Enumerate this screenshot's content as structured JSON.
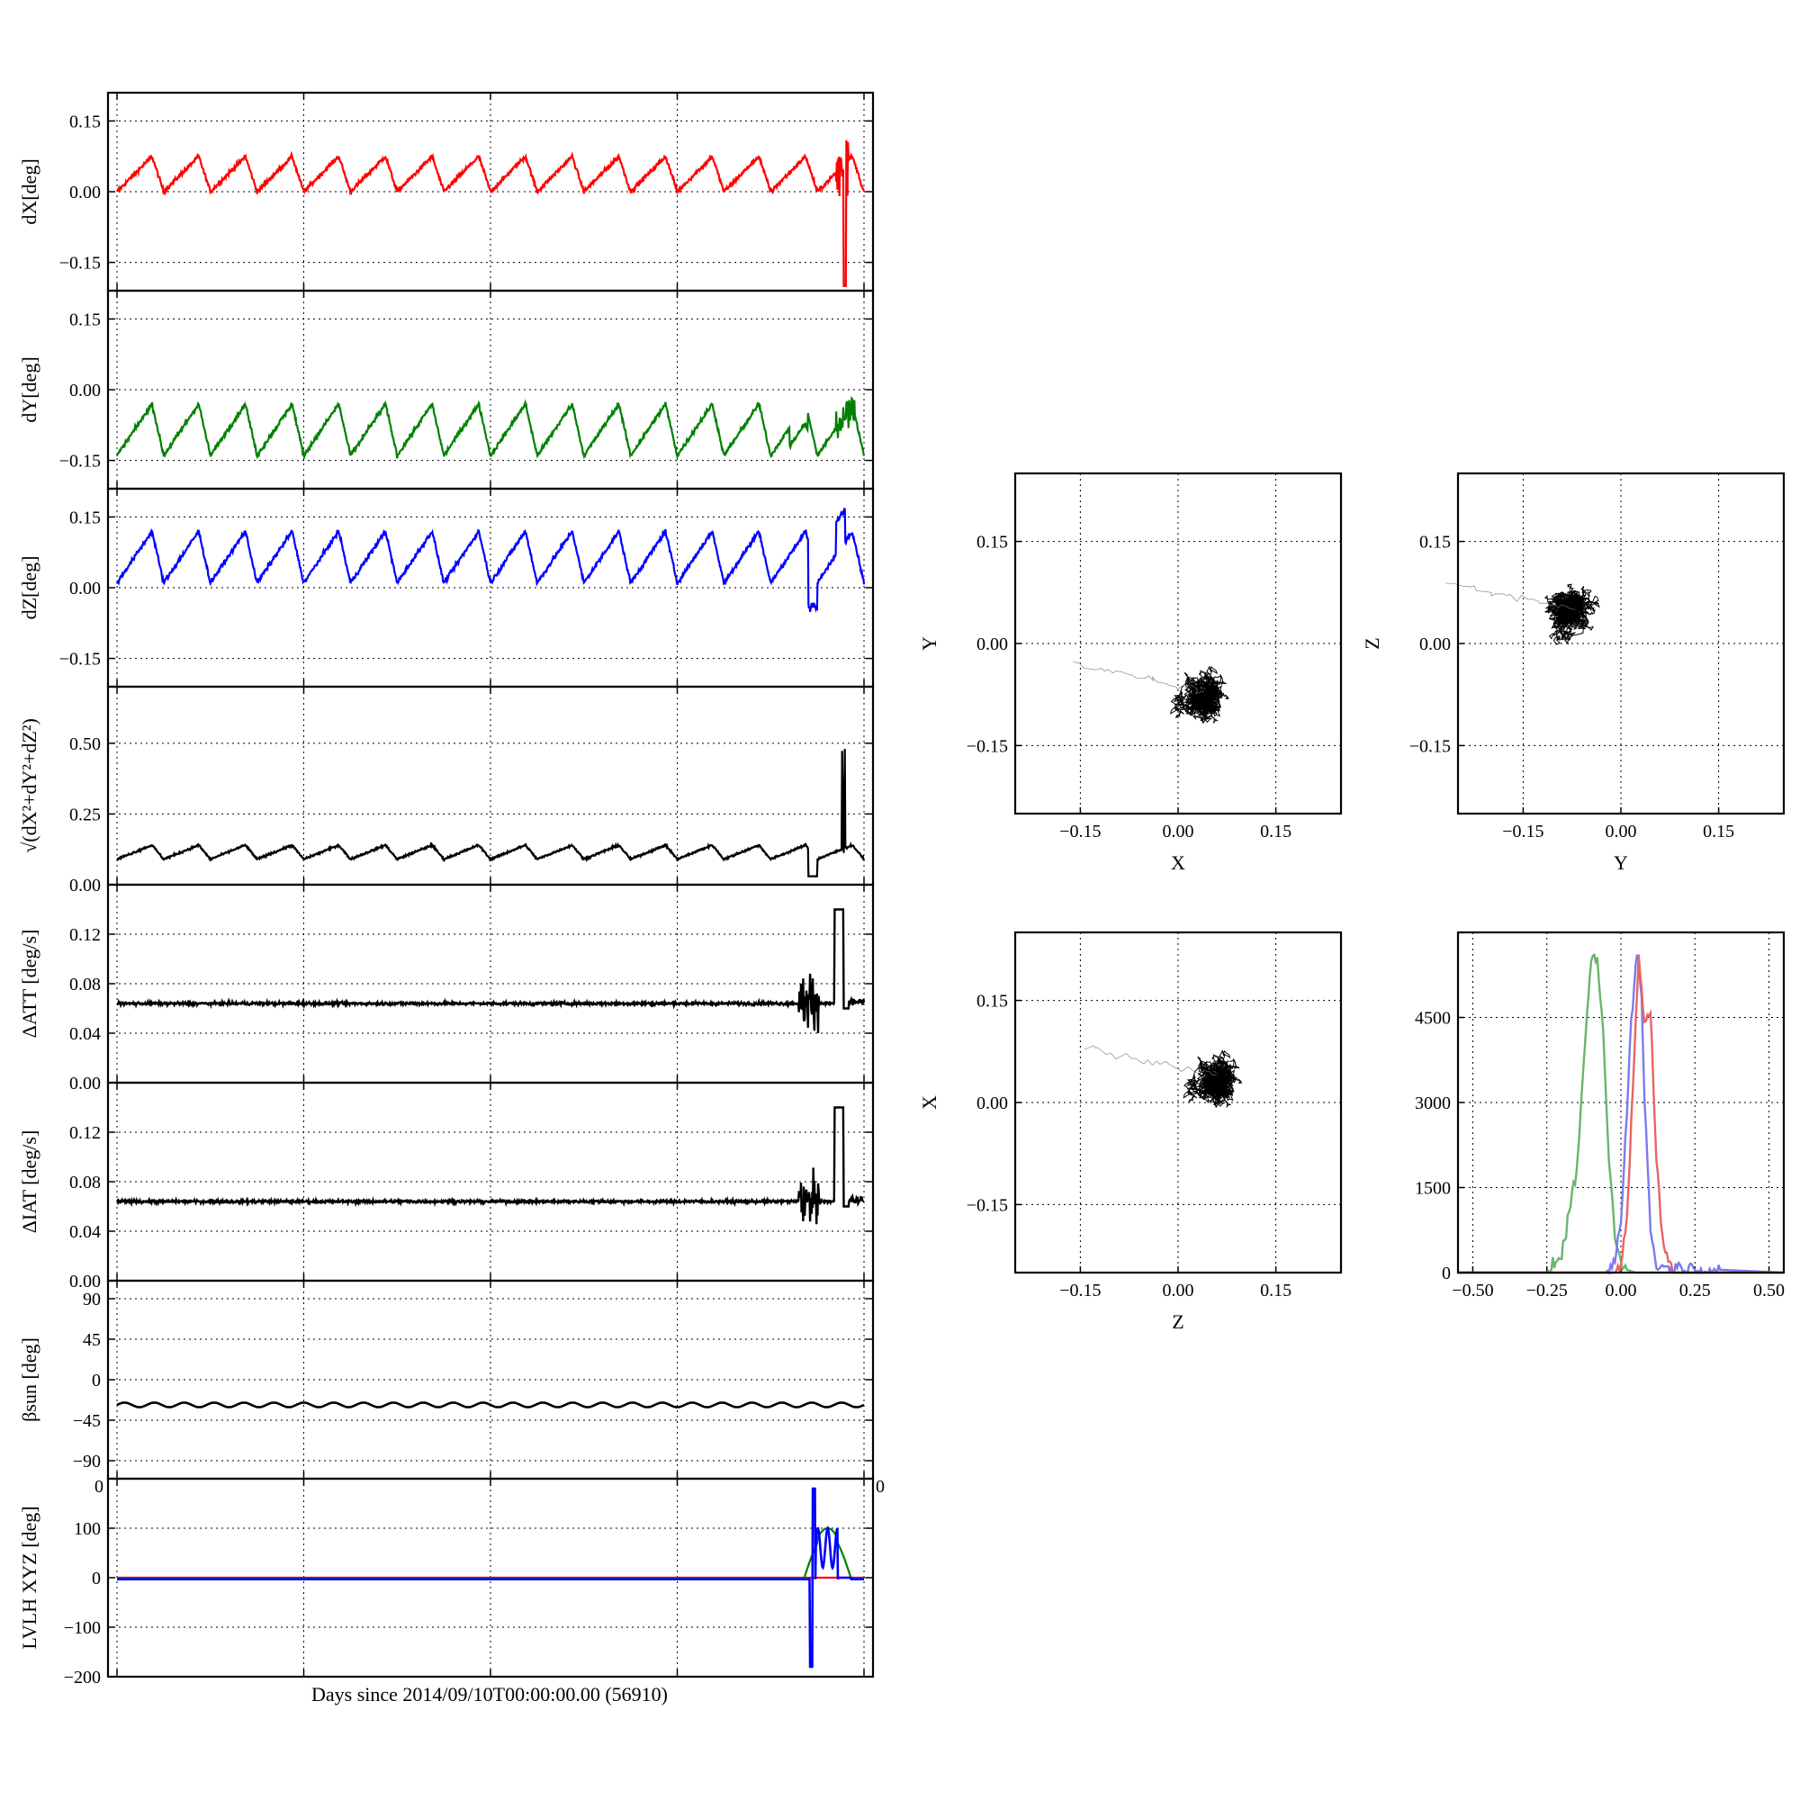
{
  "figure": {
    "xlabel": "Days since 2014/09/10T00:00:00.00 (56910)",
    "x_tick_stray_left": "0",
    "x_tick_stray_right": "0"
  },
  "colors": {
    "x": "#ff0000",
    "y": "#008000",
    "z": "#0000ff",
    "k": "#000000",
    "hx": "#e96464",
    "hy": "#6cb46c",
    "hz": "#7a7af0"
  },
  "chart_data": [
    {
      "id": "dx",
      "type": "line",
      "ylabel": "dX[deg]",
      "ylim": [
        -0.21,
        0.21
      ],
      "yticks": [
        "0.15",
        "0.00",
        "−0.15"
      ],
      "ytick_values": [
        0.15,
        0,
        -0.15
      ],
      "color": "#ff0000",
      "series": [
        {
          "x": [
            0,
            40
          ],
          "description": "periodic oscillation approx 0.0 to 0.08, spike near x=39"
        }
      ]
    },
    {
      "id": "dy",
      "type": "line",
      "ylabel": "dY[deg]",
      "ylim": [
        -0.21,
        0.21
      ],
      "yticks": [
        "0.15",
        "0.00",
        "−0.15"
      ],
      "ytick_values": [
        0.15,
        0,
        -0.15
      ],
      "color": "#008000"
    },
    {
      "id": "dz",
      "type": "line",
      "ylabel": "dZ[deg]",
      "ylim": [
        -0.21,
        0.21
      ],
      "yticks": [
        "0.15",
        "0.00",
        "−0.15"
      ],
      "ytick_values": [
        0.15,
        0,
        -0.15
      ],
      "color": "#0000ff"
    },
    {
      "id": "norm",
      "type": "line",
      "ylabel": "√(dX²+dY²+dZ²)",
      "ylim": [
        0,
        0.7
      ],
      "yticks": [
        "0.50",
        "0.25",
        "0.00"
      ],
      "ytick_values": [
        0.5,
        0.25,
        0
      ],
      "color": "#000000"
    },
    {
      "id": "datt",
      "type": "line",
      "ylabel": "ΔATT [deg/s]",
      "ylim": [
        0,
        0.16
      ],
      "yticks": [
        "0.12",
        "0.08",
        "0.04",
        "0.00"
      ],
      "ytick_values": [
        0.12,
        0.08,
        0.04,
        0
      ],
      "color": "#000000"
    },
    {
      "id": "diat",
      "type": "line",
      "ylabel": "ΔIAT [deg/s]",
      "ylim": [
        0,
        0.16
      ],
      "yticks": [
        "0.12",
        "0.08",
        "0.04",
        "0.00"
      ],
      "ytick_values": [
        0.12,
        0.08,
        0.04,
        0
      ],
      "color": "#000000"
    },
    {
      "id": "beta",
      "type": "line",
      "ylabel": "βsun [deg]",
      "ylim": [
        -110,
        110
      ],
      "yticks": [
        "90",
        "45",
        "0",
        "−45",
        "−90"
      ],
      "ytick_values": [
        90,
        45,
        0,
        -45,
        -90
      ],
      "color": "#000000"
    },
    {
      "id": "lvlh",
      "type": "line",
      "ylabel": "LVLH XYZ [deg]",
      "ylim": [
        -200,
        200
      ],
      "yticks": [
        "100",
        "0",
        "−100",
        "−200"
      ],
      "ytick_values": [
        100,
        0,
        -100,
        -200
      ]
    },
    {
      "id": "scatter_xy",
      "type": "scatter",
      "xlabel": "X",
      "ylabel": "Y",
      "xlim": [
        -0.25,
        0.25
      ],
      "ylim": [
        -0.25,
        0.25
      ],
      "ticks": [
        "−0.15",
        "0.00",
        "0.15"
      ],
      "tick_values": [
        -0.15,
        0,
        0.15
      ],
      "cloud_center": [
        0.04,
        -0.07
      ]
    },
    {
      "id": "scatter_yz",
      "type": "scatter",
      "xlabel": "Y",
      "ylabel": "Z",
      "xlim": [
        -0.25,
        0.25
      ],
      "ylim": [
        -0.25,
        0.25
      ],
      "ticks": [
        "−0.15",
        "0.00",
        "0.15"
      ],
      "tick_values": [
        -0.15,
        0,
        0.15
      ],
      "cloud_center": [
        -0.07,
        0.05
      ]
    },
    {
      "id": "scatter_zx",
      "type": "scatter",
      "xlabel": "Z",
      "ylabel": "X",
      "xlim": [
        -0.25,
        0.25
      ],
      "ylim": [
        -0.25,
        0.25
      ],
      "ticks": [
        "−0.15",
        "0.00",
        "0.15"
      ],
      "tick_values": [
        -0.15,
        0,
        0.15
      ],
      "cloud_center": [
        0.06,
        0.04
      ]
    },
    {
      "id": "hist",
      "type": "line",
      "xlim": [
        -0.55,
        0.55
      ],
      "ylim": [
        0,
        6000
      ],
      "xticks": [
        "−0.50",
        "−0.25",
        "0.00",
        "0.25",
        "0.50"
      ],
      "xtick_values": [
        -0.5,
        -0.25,
        0,
        0.25,
        0.5
      ],
      "yticks": [
        "4500",
        "3000",
        "1500",
        "0"
      ],
      "ytick_values": [
        4500,
        3000,
        1500,
        0
      ],
      "series": [
        {
          "color": "#6cb46c",
          "x": [
            -0.55,
            -0.25,
            -0.2,
            -0.15,
            -0.12,
            -0.1,
            -0.08,
            -0.06,
            -0.04,
            -0.02,
            0,
            0.02,
            0.05,
            0.55
          ],
          "y": [
            0,
            0,
            300,
            1800,
            4000,
            5600,
            5500,
            4200,
            2000,
            600,
            150,
            50,
            0,
            0
          ]
        },
        {
          "color": "#7a7af0",
          "x": [
            -0.55,
            -0.05,
            -0.02,
            0,
            0.02,
            0.03,
            0.04,
            0.05,
            0.06,
            0.07,
            0.08,
            0.1,
            0.12,
            0.55
          ],
          "y": [
            0,
            0,
            200,
            900,
            2800,
            4000,
            4800,
            5500,
            5600,
            4800,
            3000,
            800,
            100,
            0
          ]
        },
        {
          "color": "#e96464",
          "x": [
            -0.55,
            -0.02,
            0,
            0.02,
            0.04,
            0.06,
            0.08,
            0.1,
            0.12,
            0.14,
            0.16,
            0.18,
            0.55
          ],
          "y": [
            0,
            0,
            150,
            800,
            3200,
            5600,
            4400,
            4600,
            2000,
            600,
            200,
            0,
            0
          ]
        }
      ]
    }
  ]
}
